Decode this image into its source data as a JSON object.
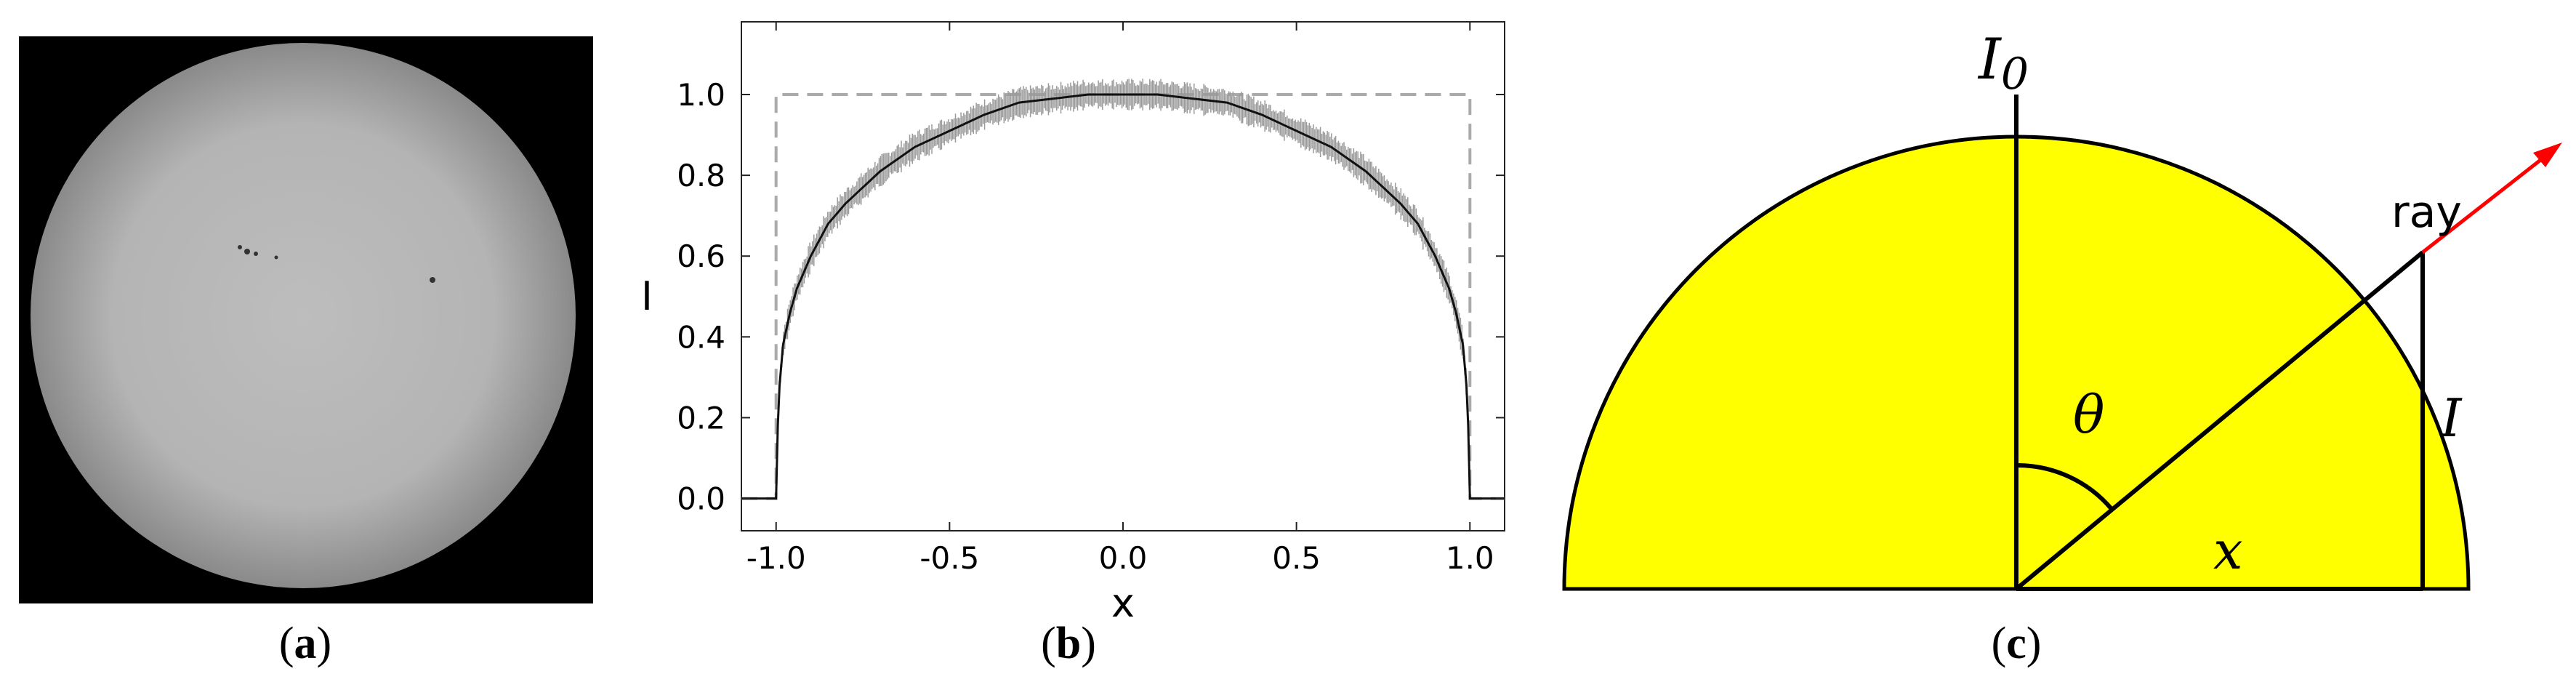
{
  "panels": [
    {
      "id": "a",
      "caption_open": "(",
      "caption_letter": "a",
      "caption_close": ")"
    },
    {
      "id": "b",
      "caption_open": "(",
      "caption_letter": "b",
      "caption_close": ")"
    },
    {
      "id": "c",
      "caption_open": "(",
      "caption_letter": "c",
      "caption_close": ")"
    }
  ],
  "photo": {
    "background_color": "#000000",
    "disk_color": "#bdbdbd",
    "limb_color": "#8a8a8a"
  },
  "chart_data": {
    "type": "line",
    "xlabel": "x",
    "ylabel": "I",
    "xlim": [
      -1.1,
      1.1
    ],
    "ylim": [
      -0.08,
      1.18
    ],
    "xticks": [
      -1.0,
      -0.5,
      0.0,
      0.5,
      1.0
    ],
    "xtick_labels": [
      "-1.0",
      "-0.5",
      "0.0",
      "0.5",
      "1.0"
    ],
    "yticks": [
      0.0,
      0.2,
      0.4,
      0.6,
      0.8,
      1.0
    ],
    "ytick_labels": [
      "0.0",
      "0.2",
      "0.4",
      "0.6",
      "0.8",
      "1.0"
    ],
    "grid": false,
    "series": [
      {
        "style": "dashed",
        "color": "#aaaaaa",
        "x": [
          -1.1,
          -1.0,
          -1.0,
          1.0,
          1.0,
          1.1
        ],
        "y": [
          0.0,
          0.0,
          1.0,
          1.0,
          0.0,
          0.0
        ]
      },
      {
        "style": "solid-with-errorbars",
        "color": "#111111",
        "errorbar_color": "#9a9a9a",
        "x": [
          -1.1,
          -1.0,
          -0.995,
          -0.99,
          -0.98,
          -0.96,
          -0.94,
          -0.9,
          -0.85,
          -0.8,
          -0.75,
          -0.7,
          -0.6,
          -0.5,
          -0.4,
          -0.3,
          -0.2,
          -0.1,
          0.0,
          0.1,
          0.2,
          0.3,
          0.4,
          0.5,
          0.6,
          0.7,
          0.75,
          0.8,
          0.85,
          0.9,
          0.94,
          0.96,
          0.98,
          0.99,
          0.995,
          1.0,
          1.1
        ],
        "y": [
          0.0,
          0.0,
          0.18,
          0.28,
          0.38,
          0.46,
          0.52,
          0.6,
          0.68,
          0.73,
          0.77,
          0.81,
          0.87,
          0.91,
          0.95,
          0.98,
          0.99,
          1.0,
          1.0,
          1.0,
          0.99,
          0.98,
          0.95,
          0.91,
          0.87,
          0.81,
          0.77,
          0.73,
          0.68,
          0.6,
          0.52,
          0.46,
          0.38,
          0.28,
          0.18,
          0.0,
          0.0
        ]
      }
    ]
  },
  "diagram": {
    "fill_color": "#ffff00",
    "ray_color": "#ff0000",
    "label_I0": "I",
    "label_I0_sub": "0",
    "label_ray": "ray",
    "label_theta": "θ",
    "label_I": "I",
    "label_x": "x"
  }
}
